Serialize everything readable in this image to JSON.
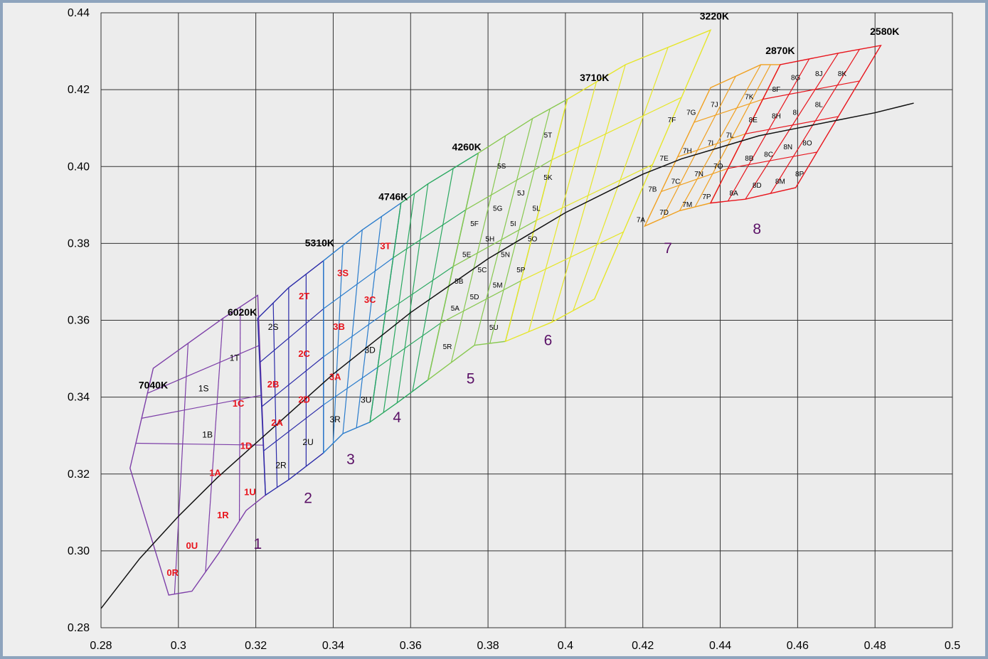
{
  "chart_data": {
    "type": "line",
    "xlim": [
      0.28,
      0.5
    ],
    "ylim": [
      0.28,
      0.44
    ],
    "x_ticks": [
      "0.28",
      "0.3",
      "0.32",
      "0.34",
      "0.36",
      "0.38",
      "0.4",
      "0.42",
      "0.44",
      "0.46",
      "0.48",
      "0.5"
    ],
    "y_ticks": [
      "0.28",
      "0.30",
      "0.32",
      "0.34",
      "0.36",
      "0.38",
      "0.40",
      "0.42",
      "0.44"
    ],
    "grid": true,
    "planckian_locus": {
      "x": [
        0.28,
        0.29,
        0.3,
        0.31,
        0.32,
        0.33,
        0.34,
        0.35,
        0.36,
        0.37,
        0.38,
        0.39,
        0.4,
        0.41,
        0.42,
        0.43,
        0.44,
        0.45,
        0.46,
        0.47,
        0.48,
        0.49
      ],
      "y": [
        0.285,
        0.298,
        0.309,
        0.319,
        0.328,
        0.337,
        0.346,
        0.354,
        0.362,
        0.369,
        0.376,
        0.382,
        0.388,
        0.393,
        0.398,
        0.402,
        0.405,
        0.408,
        0.41,
        0.412,
        0.414,
        0.4165
      ]
    },
    "regions": [
      {
        "name": "1",
        "color": "#7d3fa8",
        "top": [
          [
            0.2935,
            0.3475
          ],
          [
            0.3115,
            0.3605
          ],
          [
            0.3205,
            0.3665
          ]
        ],
        "bottom": [
          [
            0.2875,
            0.3215
          ],
          [
            0.2975,
            0.2885
          ],
          [
            0.3035,
            0.2895
          ],
          [
            0.3105,
            0.2995
          ],
          [
            0.3175,
            0.3105
          ],
          [
            0.3225,
            0.3145
          ]
        ]
      },
      {
        "name": "2",
        "color": "#2a2aa8",
        "top": [
          [
            0.3205,
            0.3605
          ],
          [
            0.3285,
            0.3685
          ],
          [
            0.3375,
            0.3755
          ]
        ],
        "bottom": [
          [
            0.3225,
            0.3145
          ],
          [
            0.3285,
            0.3185
          ],
          [
            0.3375,
            0.3255
          ]
        ]
      },
      {
        "name": "3",
        "color": "#2a7ccc",
        "top": [
          [
            0.3375,
            0.3755
          ],
          [
            0.3475,
            0.3835
          ],
          [
            0.3575,
            0.3905
          ]
        ],
        "bottom": [
          [
            0.3375,
            0.3255
          ],
          [
            0.3425,
            0.3305
          ],
          [
            0.3495,
            0.3335
          ]
        ]
      },
      {
        "name": "4",
        "color": "#2aa860",
        "top": [
          [
            0.3575,
            0.3905
          ],
          [
            0.3645,
            0.3955
          ],
          [
            0.3775,
            0.4035
          ]
        ],
        "bottom": [
          [
            0.3495,
            0.3335
          ],
          [
            0.3565,
            0.3385
          ],
          [
            0.3645,
            0.3445
          ]
        ]
      },
      {
        "name": "5",
        "color": "#88c850",
        "top": [
          [
            0.3775,
            0.4035
          ],
          [
            0.3915,
            0.4125
          ],
          [
            0.4005,
            0.4175
          ]
        ],
        "bottom": [
          [
            0.3645,
            0.3445
          ],
          [
            0.3765,
            0.3535
          ],
          [
            0.3845,
            0.3545
          ]
        ]
      },
      {
        "name": "6",
        "color": "#e6e62a",
        "top": [
          [
            0.4005,
            0.4175
          ],
          [
            0.4155,
            0.4265
          ],
          [
            0.4375,
            0.4355
          ]
        ],
        "bottom": [
          [
            0.3845,
            0.3545
          ],
          [
            0.3965,
            0.3595
          ],
          [
            0.4075,
            0.3655
          ]
        ]
      },
      {
        "name": "7",
        "color": "#f0a020",
        "top": [
          [
            0.4375,
            0.4205
          ],
          [
            0.4505,
            0.4265
          ],
          [
            0.4555,
            0.4265
          ]
        ],
        "bottom": [
          [
            0.4205,
            0.3845
          ],
          [
            0.4295,
            0.3885
          ],
          [
            0.4375,
            0.3905
          ]
        ]
      },
      {
        "name": "8",
        "color": "#e8141c",
        "top": [
          [
            0.4555,
            0.4265
          ],
          [
            0.4705,
            0.4295
          ],
          [
            0.4815,
            0.4315
          ]
        ],
        "bottom": [
          [
            0.4375,
            0.3905
          ],
          [
            0.4465,
            0.3915
          ],
          [
            0.4595,
            0.3945
          ]
        ]
      }
    ],
    "cct_labels": [
      {
        "text": "7040K",
        "x": 0.2935,
        "y": 0.3415
      },
      {
        "text": "6020K",
        "x": 0.3165,
        "y": 0.3605
      },
      {
        "text": "5310K",
        "x": 0.3365,
        "y": 0.3785
      },
      {
        "text": "4746K",
        "x": 0.3555,
        "y": 0.3905
      },
      {
        "text": "4260K",
        "x": 0.3745,
        "y": 0.4035
      },
      {
        "text": "3710K",
        "x": 0.4075,
        "y": 0.4215
      },
      {
        "text": "3220K",
        "x": 0.4385,
        "y": 0.4375
      },
      {
        "text": "2870K",
        "x": 0.4555,
        "y": 0.4285
      },
      {
        "text": "2580K",
        "x": 0.4825,
        "y": 0.4335
      }
    ],
    "region_labels": [
      {
        "text": "1",
        "x": 0.3205,
        "y": 0.3005
      },
      {
        "text": "2",
        "x": 0.3335,
        "y": 0.3125
      },
      {
        "text": "3",
        "x": 0.3445,
        "y": 0.3225
      },
      {
        "text": "4",
        "x": 0.3565,
        "y": 0.3335
      },
      {
        "text": "5",
        "x": 0.3755,
        "y": 0.3435
      },
      {
        "text": "6",
        "x": 0.3955,
        "y": 0.3535
      },
      {
        "text": "7",
        "x": 0.4265,
        "y": 0.3775
      },
      {
        "text": "8",
        "x": 0.4495,
        "y": 0.3825
      }
    ],
    "bin_labels": [
      {
        "text": "0R",
        "x": 0.2985,
        "y": 0.2935,
        "color": "red"
      },
      {
        "text": "0U",
        "x": 0.3035,
        "y": 0.3005,
        "color": "red"
      },
      {
        "text": "1R",
        "x": 0.3115,
        "y": 0.3085,
        "color": "red"
      },
      {
        "text": "1U",
        "x": 0.3185,
        "y": 0.3145,
        "color": "red"
      },
      {
        "text": "1A",
        "x": 0.3095,
        "y": 0.3195,
        "color": "red"
      },
      {
        "text": "1D",
        "x": 0.3175,
        "y": 0.3265,
        "color": "red"
      },
      {
        "text": "1B",
        "x": 0.3075,
        "y": 0.3295,
        "color": "black"
      },
      {
        "text": "2A",
        "x": 0.3255,
        "y": 0.3325,
        "color": "red"
      },
      {
        "text": "1C",
        "x": 0.3155,
        "y": 0.3375,
        "color": "red"
      },
      {
        "text": "1S",
        "x": 0.3065,
        "y": 0.3415,
        "color": "black"
      },
      {
        "text": "2D",
        "x": 0.3325,
        "y": 0.3385,
        "color": "red"
      },
      {
        "text": "2B",
        "x": 0.3245,
        "y": 0.3425,
        "color": "red"
      },
      {
        "text": "1T",
        "x": 0.3145,
        "y": 0.3495,
        "color": "black"
      },
      {
        "text": "2C",
        "x": 0.3325,
        "y": 0.3505,
        "color": "red"
      },
      {
        "text": "2S",
        "x": 0.3245,
        "y": 0.3575,
        "color": "black"
      },
      {
        "text": "2T",
        "x": 0.3325,
        "y": 0.3655,
        "color": "red"
      },
      {
        "text": "2R",
        "x": 0.3265,
        "y": 0.3215,
        "color": "black"
      },
      {
        "text": "2U",
        "x": 0.3335,
        "y": 0.3275,
        "color": "black"
      },
      {
        "text": "3R",
        "x": 0.3405,
        "y": 0.3335,
        "color": "black"
      },
      {
        "text": "3U",
        "x": 0.3485,
        "y": 0.3385,
        "color": "black"
      },
      {
        "text": "3A",
        "x": 0.3405,
        "y": 0.3445,
        "color": "red"
      },
      {
        "text": "3D",
        "x": 0.3495,
        "y": 0.3515,
        "color": "black"
      },
      {
        "text": "3B",
        "x": 0.3415,
        "y": 0.3575,
        "color": "red"
      },
      {
        "text": "3C",
        "x": 0.3495,
        "y": 0.3645,
        "color": "red"
      },
      {
        "text": "3S",
        "x": 0.3425,
        "y": 0.3715,
        "color": "red"
      },
      {
        "text": "3T",
        "x": 0.3535,
        "y": 0.3785,
        "color": "red"
      },
      {
        "text": "5R",
        "x": 0.3695,
        "y": 0.3525,
        "color": "black",
        "size": "small"
      },
      {
        "text": "5U",
        "x": 0.3815,
        "y": 0.3575,
        "color": "black",
        "size": "small"
      },
      {
        "text": "5A",
        "x": 0.3715,
        "y": 0.3625,
        "color": "black",
        "size": "small"
      },
      {
        "text": "5D",
        "x": 0.3765,
        "y": 0.3655,
        "color": "black",
        "size": "small"
      },
      {
        "text": "5B",
        "x": 0.3725,
        "y": 0.3695,
        "color": "black",
        "size": "small"
      },
      {
        "text": "5M",
        "x": 0.3825,
        "y": 0.3685,
        "color": "black",
        "size": "small"
      },
      {
        "text": "5C",
        "x": 0.3785,
        "y": 0.3725,
        "color": "black",
        "size": "small"
      },
      {
        "text": "5P",
        "x": 0.3885,
        "y": 0.3725,
        "color": "black",
        "size": "small"
      },
      {
        "text": "5E",
        "x": 0.3745,
        "y": 0.3765,
        "color": "black",
        "size": "small"
      },
      {
        "text": "5N",
        "x": 0.3845,
        "y": 0.3765,
        "color": "black",
        "size": "small"
      },
      {
        "text": "5H",
        "x": 0.3805,
        "y": 0.3805,
        "color": "black",
        "size": "small"
      },
      {
        "text": "5O",
        "x": 0.3915,
        "y": 0.3805,
        "color": "black",
        "size": "small"
      },
      {
        "text": "5F",
        "x": 0.3765,
        "y": 0.3845,
        "color": "black",
        "size": "small"
      },
      {
        "text": "5I",
        "x": 0.3865,
        "y": 0.3845,
        "color": "black",
        "size": "small"
      },
      {
        "text": "5G",
        "x": 0.3825,
        "y": 0.3885,
        "color": "black",
        "size": "small"
      },
      {
        "text": "5L",
        "x": 0.3925,
        "y": 0.3885,
        "color": "black",
        "size": "small"
      },
      {
        "text": "5J",
        "x": 0.3885,
        "y": 0.3925,
        "color": "black",
        "size": "small"
      },
      {
        "text": "5K",
        "x": 0.3955,
        "y": 0.3965,
        "color": "black",
        "size": "small"
      },
      {
        "text": "5S",
        "x": 0.3835,
        "y": 0.3995,
        "color": "black",
        "size": "small"
      },
      {
        "text": "5T",
        "x": 0.3955,
        "y": 0.4075,
        "color": "black",
        "size": "small"
      },
      {
        "text": "7A",
        "x": 0.4195,
        "y": 0.3855,
        "color": "black",
        "size": "small"
      },
      {
        "text": "7D",
        "x": 0.4255,
        "y": 0.3875,
        "color": "black",
        "size": "small"
      },
      {
        "text": "7M",
        "x": 0.4315,
        "y": 0.3895,
        "color": "black",
        "size": "small"
      },
      {
        "text": "7P",
        "x": 0.4365,
        "y": 0.3915,
        "color": "black",
        "size": "small"
      },
      {
        "text": "7B",
        "x": 0.4225,
        "y": 0.3935,
        "color": "black",
        "size": "small"
      },
      {
        "text": "7C",
        "x": 0.4285,
        "y": 0.3955,
        "color": "black",
        "size": "small"
      },
      {
        "text": "7N",
        "x": 0.4345,
        "y": 0.3975,
        "color": "black",
        "size": "small"
      },
      {
        "text": "7O",
        "x": 0.4395,
        "y": 0.3995,
        "color": "black",
        "size": "small"
      },
      {
        "text": "7E",
        "x": 0.4255,
        "y": 0.4015,
        "color": "black",
        "size": "small"
      },
      {
        "text": "7H",
        "x": 0.4315,
        "y": 0.4035,
        "color": "black",
        "size": "small"
      },
      {
        "text": "7I",
        "x": 0.4375,
        "y": 0.4055,
        "color": "black",
        "size": "small"
      },
      {
        "text": "7L",
        "x": 0.4425,
        "y": 0.4075,
        "color": "black",
        "size": "small"
      },
      {
        "text": "7F",
        "x": 0.4275,
        "y": 0.4115,
        "color": "black",
        "size": "small"
      },
      {
        "text": "7G",
        "x": 0.4325,
        "y": 0.4135,
        "color": "black",
        "size": "small"
      },
      {
        "text": "7J",
        "x": 0.4385,
        "y": 0.4155,
        "color": "black",
        "size": "small"
      },
      {
        "text": "7K",
        "x": 0.4475,
        "y": 0.4175,
        "color": "black",
        "size": "small"
      },
      {
        "text": "8A",
        "x": 0.4435,
        "y": 0.3925,
        "color": "black",
        "size": "small"
      },
      {
        "text": "8D",
        "x": 0.4495,
        "y": 0.3945,
        "color": "black",
        "size": "small"
      },
      {
        "text": "8M",
        "x": 0.4555,
        "y": 0.3955,
        "color": "black",
        "size": "small"
      },
      {
        "text": "8P",
        "x": 0.4605,
        "y": 0.3975,
        "color": "black",
        "size": "small"
      },
      {
        "text": "8B",
        "x": 0.4475,
        "y": 0.4015,
        "color": "black",
        "size": "small"
      },
      {
        "text": "8C",
        "x": 0.4525,
        "y": 0.4025,
        "color": "black",
        "size": "small"
      },
      {
        "text": "8N",
        "x": 0.4575,
        "y": 0.4045,
        "color": "black",
        "size": "small"
      },
      {
        "text": "8O",
        "x": 0.4625,
        "y": 0.4055,
        "color": "black",
        "size": "small"
      },
      {
        "text": "8E",
        "x": 0.4485,
        "y": 0.4115,
        "color": "black",
        "size": "small"
      },
      {
        "text": "8H",
        "x": 0.4545,
        "y": 0.4125,
        "color": "black",
        "size": "small"
      },
      {
        "text": "8I",
        "x": 0.4595,
        "y": 0.4135,
        "color": "black",
        "size": "small"
      },
      {
        "text": "8L",
        "x": 0.4655,
        "y": 0.4155,
        "color": "black",
        "size": "small"
      },
      {
        "text": "8F",
        "x": 0.4545,
        "y": 0.4195,
        "color": "black",
        "size": "small"
      },
      {
        "text": "8G",
        "x": 0.4595,
        "y": 0.4225,
        "color": "black",
        "size": "small"
      },
      {
        "text": "8J",
        "x": 0.4655,
        "y": 0.4235,
        "color": "black",
        "size": "small"
      },
      {
        "text": "8K",
        "x": 0.4715,
        "y": 0.4235,
        "color": "black",
        "size": "small"
      }
    ]
  }
}
